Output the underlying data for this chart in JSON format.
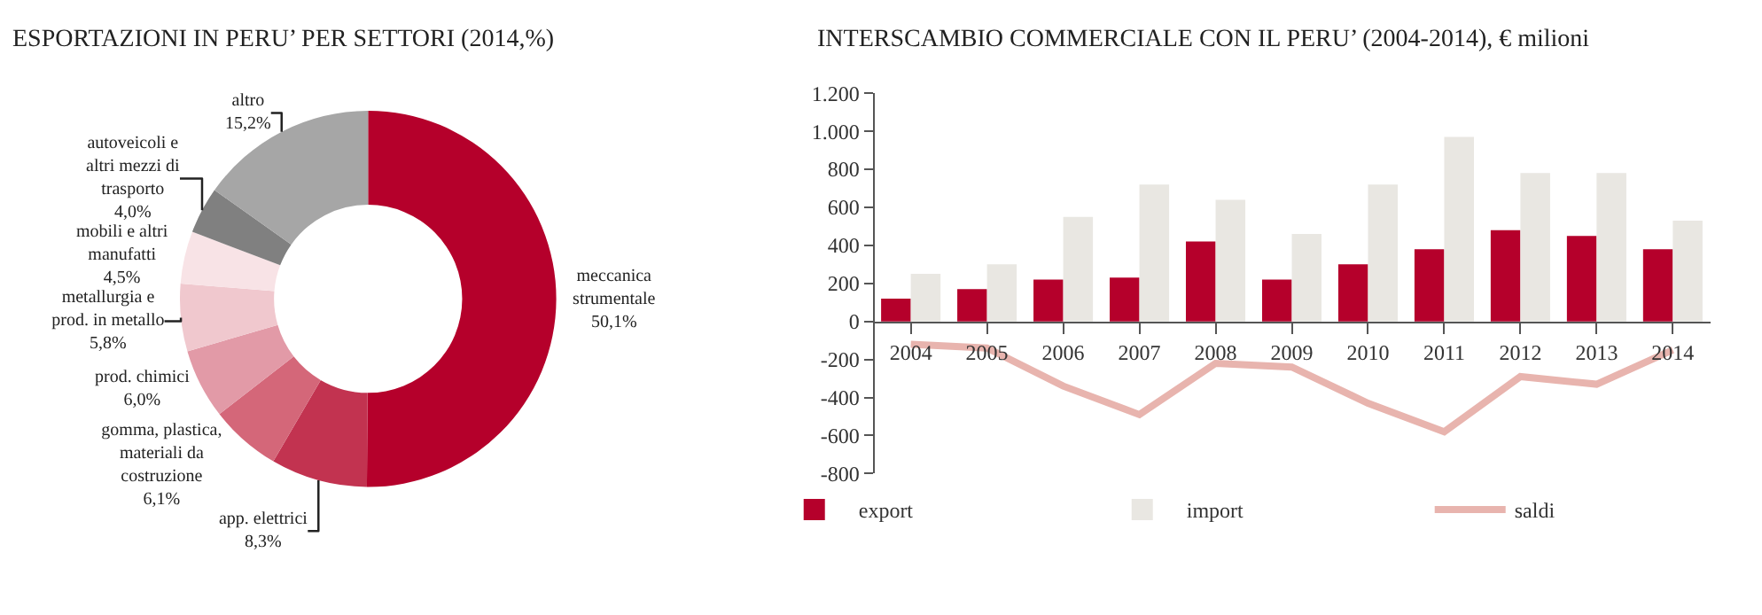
{
  "chart_data": [
    {
      "type": "donut",
      "title": "ESPORTAZIONI IN PERU’ PER SETTORI (2014,%)",
      "categories": [
        "meccanica strumentale",
        "app. elettrici",
        "gomma, plastica, materiali da costruzione",
        "prod. chimici",
        "metallurgia e prod. in metallo",
        "mobili e altri manufatti",
        "autoveicoli e altri mezzi di trasporto",
        "altro"
      ],
      "values": [
        50.1,
        8.3,
        6.1,
        6.0,
        5.8,
        4.5,
        4.0,
        15.2
      ],
      "value_labels": [
        "50,1%",
        "8,3%",
        "6,1%",
        "6,0%",
        "5,8%",
        "4,5%",
        "4,0%",
        "15,2%"
      ],
      "colors": [
        "#b5002b",
        "#c23350",
        "#d46779",
        "#e29aa7",
        "#f0c8ce",
        "#f8e3e6",
        "#808080",
        "#a6a6a6"
      ],
      "legend": false
    },
    {
      "type": "bar",
      "title": "INTERSCAMBIO COMMERCIALE CON IL PERU’ (2004-2014), € milioni",
      "categories": [
        "2004",
        "2005",
        "2006",
        "2007",
        "2008",
        "2009",
        "2010",
        "2011",
        "2012",
        "2013",
        "2014"
      ],
      "series": [
        {
          "name": "export",
          "color": "#b5002b",
          "values": [
            120,
            170,
            220,
            230,
            420,
            220,
            300,
            380,
            480,
            450,
            380
          ]
        },
        {
          "name": "import",
          "color": "#e9e7e2",
          "values": [
            250,
            300,
            550,
            720,
            640,
            460,
            720,
            970,
            780,
            780,
            530
          ]
        },
        {
          "name": "saldi",
          "type": "line",
          "color": "#e8b4ae",
          "values": [
            -120,
            -140,
            -340,
            -490,
            -220,
            -240,
            -430,
            -580,
            -290,
            -330,
            -150
          ]
        }
      ],
      "ylim": [
        -800,
        1200
      ],
      "yticks": [
        {
          "value": -800,
          "label": "-800"
        },
        {
          "value": -600,
          "label": "-600"
        },
        {
          "value": -400,
          "label": "-400"
        },
        {
          "value": -200,
          "label": "-200"
        },
        0,
        200,
        400,
        600,
        800,
        {
          "value": 1000,
          "label": "1.000"
        },
        {
          "value": 1200,
          "label": "1.200"
        }
      ],
      "legend": "bottom",
      "marker": "none"
    }
  ]
}
